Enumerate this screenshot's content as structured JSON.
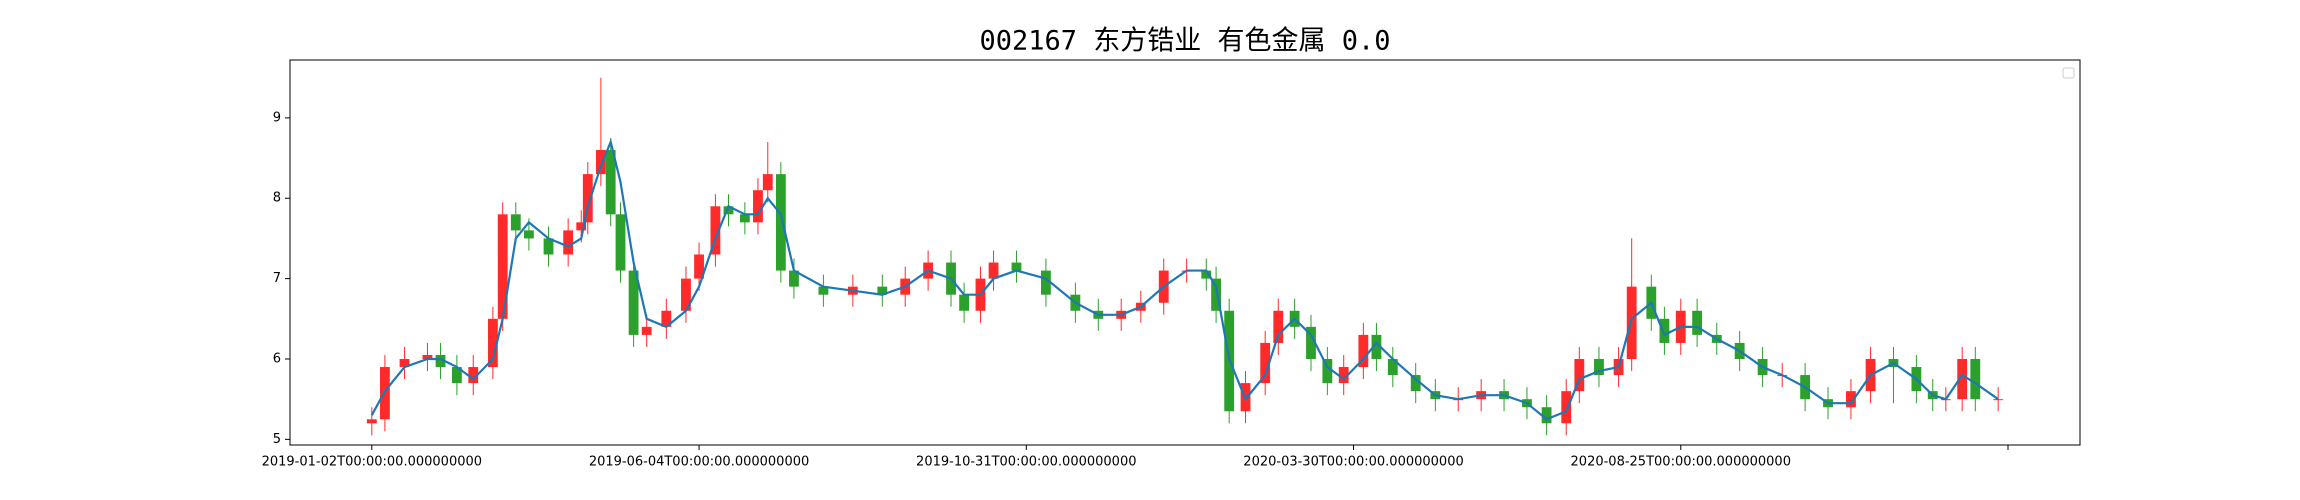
{
  "chart_data": {
    "type": "candlestick",
    "title": "002167 东方锆业 有色金属 0.0",
    "xlim": [
      -25,
      522
    ],
    "ylim": [
      4.93,
      9.72
    ],
    "yticks": [
      5,
      6,
      7,
      8,
      9
    ],
    "xticks": [
      {
        "value": 0,
        "label": "2019-01-02T00:00:00.000000000"
      },
      {
        "value": 100,
        "label": "2019-06-04T00:00:00.000000000"
      },
      {
        "value": 200,
        "label": "2019-10-31T00:00:00.000000000"
      },
      {
        "value": 300,
        "label": "2020-03-30T00:00:00.000000000"
      },
      {
        "value": 400,
        "label": "2020-08-25T00:00:00.000000000"
      },
      {
        "value": 500,
        "label": null
      }
    ],
    "up_color": "#ff2a2a",
    "down_color": "#2ca02c",
    "ma_color": "#1f77b4",
    "x": [
      0,
      4,
      10,
      17,
      21,
      26,
      31,
      37,
      40,
      44,
      48,
      54,
      60,
      64,
      66,
      70,
      73,
      76,
      80,
      84,
      90,
      96,
      100,
      105,
      109,
      114,
      118,
      121,
      125,
      129,
      138,
      147,
      156,
      163,
      170,
      177,
      181,
      186,
      190,
      197,
      206,
      215,
      222,
      229,
      235,
      242,
      249,
      255,
      258,
      262,
      267,
      273,
      277,
      282,
      287,
      292,
      297,
      303,
      307,
      312,
      319,
      325,
      332,
      339,
      346,
      353,
      359,
      365,
      369,
      375,
      381,
      385,
      391,
      395,
      400,
      405,
      411,
      418,
      425,
      431,
      438,
      445,
      452,
      458,
      465,
      472,
      477,
      481,
      486,
      490,
      497
    ],
    "open": [
      5.2,
      5.25,
      5.9,
      6.0,
      6.05,
      5.9,
      5.7,
      5.9,
      6.5,
      7.8,
      7.6,
      7.5,
      7.3,
      7.6,
      7.7,
      8.3,
      8.6,
      7.8,
      7.1,
      6.3,
      6.4,
      6.6,
      7.0,
      7.3,
      7.9,
      7.8,
      7.7,
      8.1,
      8.3,
      7.1,
      6.9,
      6.8,
      6.9,
      6.8,
      7.0,
      7.2,
      6.8,
      6.6,
      7.0,
      7.2,
      7.1,
      6.8,
      6.6,
      6.5,
      6.6,
      6.7,
      7.1,
      7.1,
      7.0,
      6.6,
      5.35,
      5.7,
      6.2,
      6.6,
      6.4,
      6.0,
      5.7,
      5.9,
      6.3,
      6.0,
      5.8,
      5.6,
      5.5,
      5.5,
      5.6,
      5.5,
      5.4,
      5.2,
      5.6,
      6.0,
      5.8,
      6.0,
      6.9,
      6.5,
      6.2,
      6.6,
      6.3,
      6.2,
      6.0,
      5.8,
      5.8,
      5.5,
      5.4,
      5.6,
      6.0,
      5.9,
      5.6,
      5.5,
      5.5,
      6.0,
      5.5
    ],
    "high": [
      5.4,
      6.05,
      6.15,
      6.2,
      6.2,
      6.05,
      6.05,
      6.65,
      7.95,
      7.95,
      7.75,
      7.65,
      7.75,
      7.85,
      8.45,
      9.5,
      8.75,
      7.95,
      7.25,
      6.55,
      6.75,
      7.15,
      7.45,
      8.05,
      8.05,
      7.95,
      8.25,
      8.7,
      8.45,
      7.25,
      7.05,
      7.05,
      7.05,
      7.15,
      7.35,
      7.35,
      6.95,
      7.15,
      7.35,
      7.35,
      7.25,
      6.95,
      6.75,
      6.75,
      6.85,
      7.25,
      7.25,
      7.25,
      7.15,
      6.75,
      5.85,
      6.35,
      6.75,
      6.75,
      6.55,
      6.15,
      6.05,
      6.45,
      6.45,
      6.15,
      5.95,
      5.75,
      5.65,
      5.75,
      5.75,
      5.65,
      5.55,
      5.75,
      6.15,
      6.15,
      6.15,
      7.5,
      7.05,
      6.65,
      6.75,
      6.75,
      6.45,
      6.35,
      6.15,
      5.95,
      5.95,
      5.65,
      5.75,
      6.15,
      6.15,
      6.05,
      5.75,
      5.65,
      6.15,
      6.15,
      5.65
    ],
    "low": [
      5.05,
      5.1,
      5.75,
      5.85,
      5.75,
      5.55,
      5.55,
      5.75,
      6.35,
      7.45,
      7.35,
      7.15,
      7.15,
      7.45,
      7.55,
      8.15,
      7.65,
      6.95,
      6.15,
      6.15,
      6.25,
      6.45,
      6.85,
      7.15,
      7.65,
      7.55,
      7.55,
      7.95,
      6.95,
      6.75,
      6.65,
      6.65,
      6.65,
      6.65,
      6.85,
      6.65,
      6.45,
      6.45,
      6.85,
      6.95,
      6.65,
      6.45,
      6.35,
      6.35,
      6.45,
      6.55,
      6.95,
      6.85,
      6.45,
      5.2,
      5.2,
      5.55,
      6.05,
      6.25,
      5.85,
      5.55,
      5.55,
      5.75,
      5.85,
      5.65,
      5.45,
      5.35,
      5.35,
      5.35,
      5.35,
      5.25,
      5.05,
      5.05,
      5.45,
      5.65,
      5.65,
      5.85,
      6.35,
      6.05,
      6.05,
      6.15,
      6.05,
      5.85,
      5.65,
      5.65,
      5.35,
      5.25,
      5.25,
      5.45,
      5.45,
      5.45,
      5.35,
      5.35,
      5.35,
      5.35,
      5.35
    ],
    "close": [
      5.25,
      5.9,
      6.0,
      6.05,
      5.9,
      5.7,
      5.9,
      6.5,
      7.8,
      7.6,
      7.5,
      7.3,
      7.6,
      7.7,
      8.3,
      8.6,
      7.8,
      7.1,
      6.3,
      6.4,
      6.6,
      7.0,
      7.3,
      7.9,
      7.8,
      7.7,
      8.1,
      8.3,
      7.1,
      6.9,
      6.8,
      6.9,
      6.8,
      7.0,
      7.2,
      6.8,
      6.6,
      7.0,
      7.2,
      7.1,
      6.8,
      6.6,
      6.5,
      6.6,
      6.7,
      7.1,
      7.1,
      7.0,
      6.6,
      5.35,
      5.7,
      6.2,
      6.6,
      6.4,
      6.0,
      5.7,
      5.9,
      6.3,
      6.0,
      5.8,
      5.6,
      5.5,
      5.5,
      5.6,
      5.5,
      5.4,
      5.2,
      5.6,
      6.0,
      5.8,
      6.0,
      6.9,
      6.5,
      6.2,
      6.6,
      6.3,
      6.2,
      6.0,
      5.8,
      5.8,
      5.5,
      5.4,
      5.6,
      6.0,
      5.9,
      5.6,
      5.5,
      5.5,
      6.0,
      5.5,
      5.5
    ],
    "ma": [
      5.3,
      5.6,
      5.9,
      6.0,
      6.0,
      5.9,
      5.75,
      6.0,
      6.5,
      7.5,
      7.7,
      7.5,
      7.4,
      7.5,
      7.9,
      8.4,
      8.7,
      8.2,
      7.2,
      6.5,
      6.4,
      6.6,
      6.9,
      7.5,
      7.9,
      7.8,
      7.8,
      8.0,
      7.8,
      7.1,
      6.9,
      6.85,
      6.8,
      6.9,
      7.1,
      7.0,
      6.8,
      6.8,
      7.0,
      7.1,
      7.0,
      6.7,
      6.55,
      6.55,
      6.65,
      6.9,
      7.1,
      7.1,
      6.9,
      6.0,
      5.5,
      5.8,
      6.3,
      6.5,
      6.3,
      5.9,
      5.75,
      6.0,
      6.2,
      6.0,
      5.75,
      5.55,
      5.5,
      5.55,
      5.55,
      5.45,
      5.25,
      5.35,
      5.75,
      5.85,
      5.9,
      6.5,
      6.7,
      6.3,
      6.4,
      6.4,
      6.25,
      6.1,
      5.9,
      5.8,
      5.65,
      5.45,
      5.45,
      5.8,
      5.95,
      5.75,
      5.55,
      5.5,
      5.8,
      5.7,
      5.5
    ]
  }
}
